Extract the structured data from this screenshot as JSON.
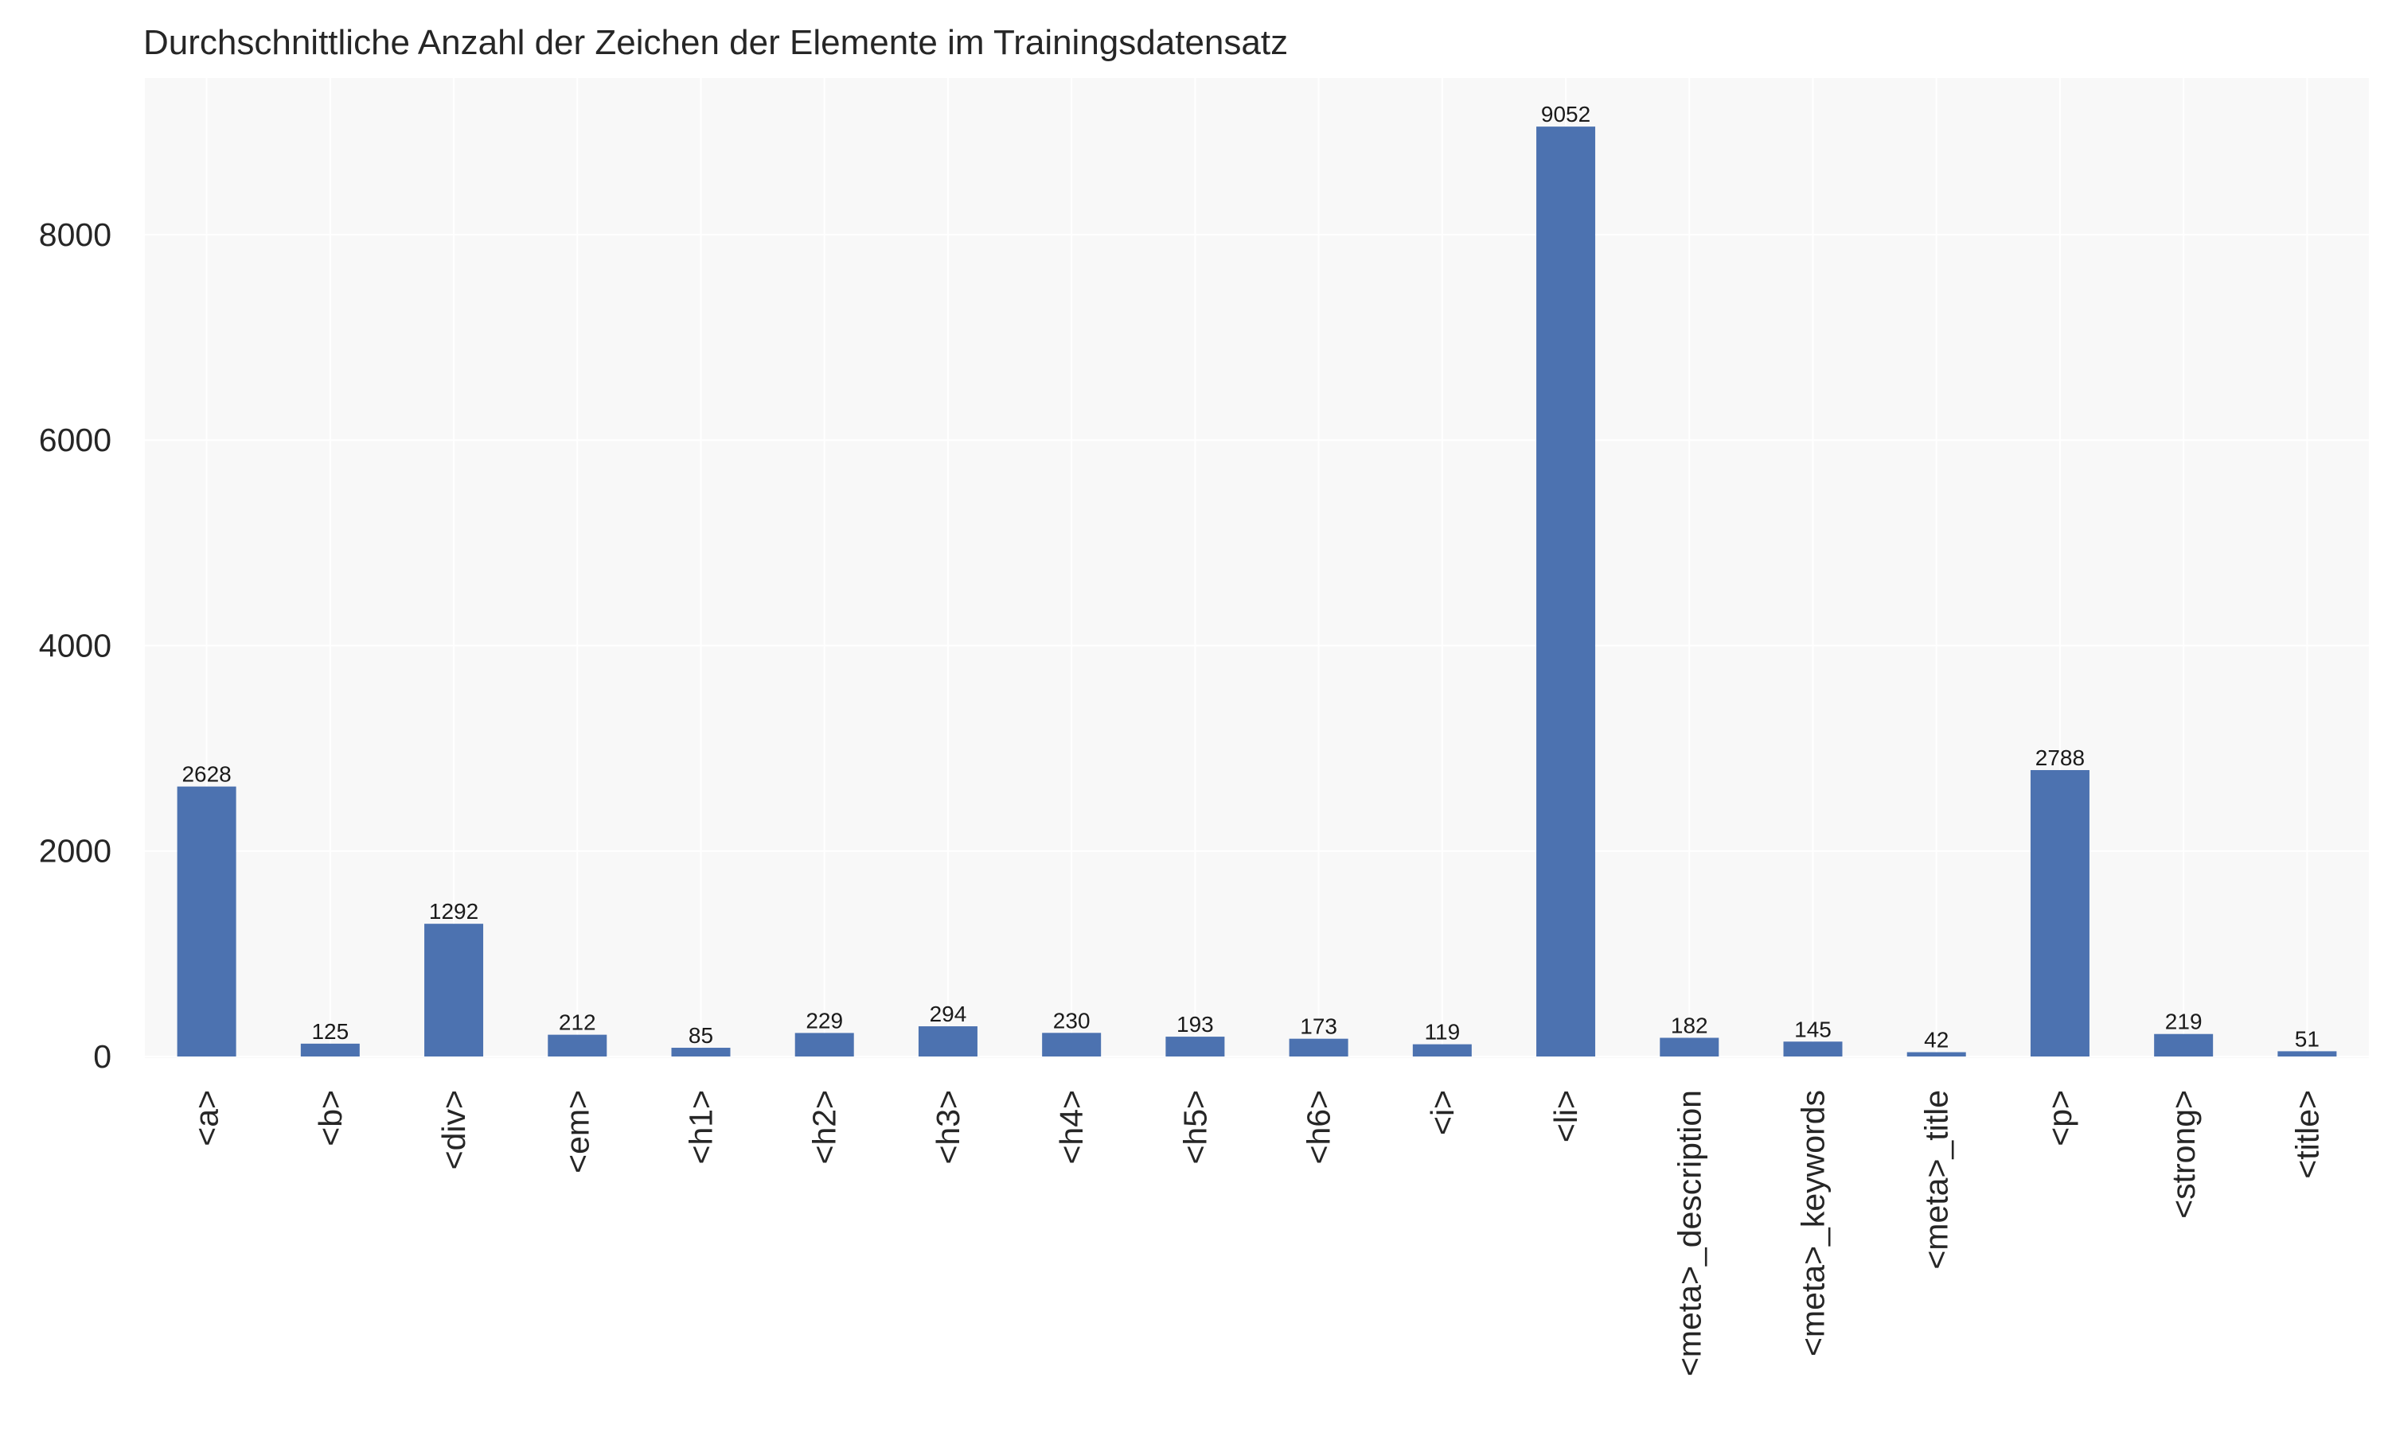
{
  "chart_data": {
    "type": "bar",
    "title": "Durchschnittliche Anzahl der Zeichen der Elemente im Trainingsdatensatz",
    "xlabel": "",
    "ylabel": "",
    "categories": [
      "<a>",
      "<b>",
      "<div>",
      "<em>",
      "<h1>",
      "<h2>",
      "<h3>",
      "<h4>",
      "<h5>",
      "<h6>",
      "<i>",
      "<li>",
      "<meta>_description",
      "<meta>_keywords",
      "<meta>_title",
      "<p>",
      "<strong>",
      "<title>"
    ],
    "values": [
      2628,
      125,
      1292,
      212,
      85,
      229,
      294,
      230,
      193,
      173,
      119,
      9052,
      182,
      145,
      42,
      2788,
      219,
      51
    ],
    "data_labels": [
      "2628",
      "125",
      "1292",
      "212",
      "85",
      "229",
      "294",
      "230",
      "193",
      "173",
      "119",
      "9052",
      "182",
      "145",
      "42",
      "2788",
      "219",
      "51"
    ],
    "ylim": [
      0,
      9500
    ],
    "yticks": [
      0,
      2000,
      4000,
      6000,
      8000
    ],
    "ytick_labels": [
      "0",
      "2000",
      "4000",
      "6000",
      "8000"
    ],
    "grid": true,
    "legend": "none",
    "colors": {
      "bar": "#4c72b0",
      "plot_background": "#f8f8f8",
      "grid": "#ffffff",
      "text": "#262626"
    }
  }
}
